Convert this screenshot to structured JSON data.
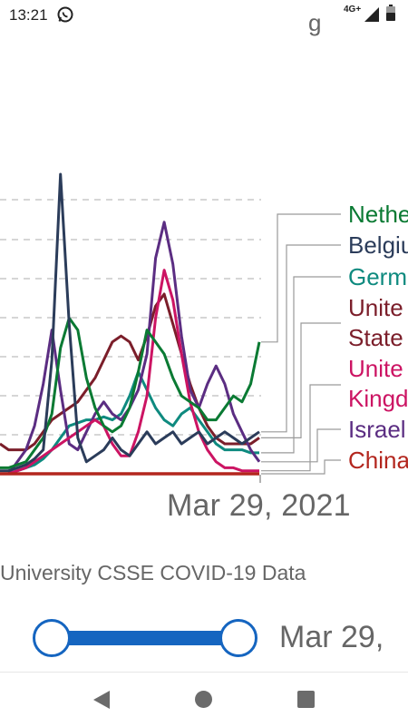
{
  "status_bar": {
    "time": "13:21",
    "network": "4G+",
    "icons": [
      "whatsapp-icon",
      "signal-icon",
      "battery-icon"
    ]
  },
  "header": {
    "title_fragment": "g"
  },
  "chart_data": {
    "type": "line",
    "x_end_label": "Mar 29, 2021",
    "grid": "horizontal dashed",
    "legend_placement": "right, end-of-line labels with leader lines",
    "series": [
      {
        "name": "Netherlands",
        "label": "Nethe",
        "color": "#0a7a33",
        "values": [
          2,
          2,
          3,
          4,
          8,
          12,
          20,
          42,
          52,
          48,
          32,
          22,
          16,
          14,
          16,
          22,
          34,
          48,
          44,
          40,
          32,
          26,
          24,
          22,
          18,
          18,
          22,
          26,
          24,
          30,
          44
        ]
      },
      {
        "name": "Belgium",
        "label": "Belgiu",
        "color": "#2b3c5a",
        "values": [
          1,
          1,
          2,
          3,
          5,
          8,
          38,
          100,
          50,
          12,
          4,
          6,
          8,
          12,
          8,
          6,
          10,
          14,
          10,
          12,
          14,
          10,
          12,
          14,
          10,
          12,
          14,
          12,
          10,
          12,
          14
        ]
      },
      {
        "name": "Germany",
        "label": "Germ",
        "color": "#0e8a7f",
        "values": [
          0,
          0,
          1,
          2,
          3,
          5,
          8,
          12,
          16,
          17,
          18,
          18,
          19,
          18,
          20,
          26,
          34,
          28,
          22,
          18,
          16,
          20,
          22,
          18,
          14,
          10,
          8,
          8,
          8,
          7,
          7
        ]
      },
      {
        "name": "United States",
        "label": "Unite",
        "label2": "State",
        "color": "#7b1e2a",
        "values": [
          10,
          8,
          8,
          8,
          10,
          14,
          18,
          20,
          22,
          24,
          28,
          32,
          38,
          44,
          46,
          44,
          38,
          46,
          56,
          60,
          50,
          40,
          30,
          22,
          16,
          12,
          10,
          10,
          10,
          10,
          12
        ]
      },
      {
        "name": "United Kingdom",
        "label": "Unite",
        "label2": "Kingd",
        "color": "#cc1463",
        "values": [
          0,
          0,
          1,
          2,
          4,
          6,
          8,
          10,
          12,
          14,
          16,
          18,
          16,
          10,
          6,
          6,
          14,
          26,
          52,
          68,
          58,
          40,
          24,
          14,
          8,
          4,
          2,
          2,
          1,
          1,
          1
        ]
      },
      {
        "name": "Israel",
        "label": "Israel",
        "color": "#5b2d82",
        "values": [
          0,
          0,
          4,
          8,
          16,
          30,
          48,
          28,
          10,
          8,
          14,
          20,
          24,
          20,
          18,
          22,
          28,
          40,
          72,
          84,
          70,
          46,
          28,
          22,
          30,
          36,
          30,
          20,
          14,
          8,
          4
        ]
      },
      {
        "name": "China",
        "label": "China",
        "color": "#b3261e",
        "values": [
          0,
          0,
          0,
          0,
          0,
          0,
          0,
          0,
          0,
          0,
          0,
          0,
          0,
          0,
          0,
          0,
          0,
          0,
          0,
          0,
          0,
          0,
          0,
          0,
          0,
          0,
          0,
          0,
          0,
          0,
          0
        ]
      }
    ]
  },
  "source": {
    "text": "University CSSE COVID-19 Data"
  },
  "slider": {
    "end_date": "Mar 29, "
  },
  "nav": {
    "buttons": [
      "back-icon",
      "home-icon",
      "recent-apps-icon"
    ]
  }
}
